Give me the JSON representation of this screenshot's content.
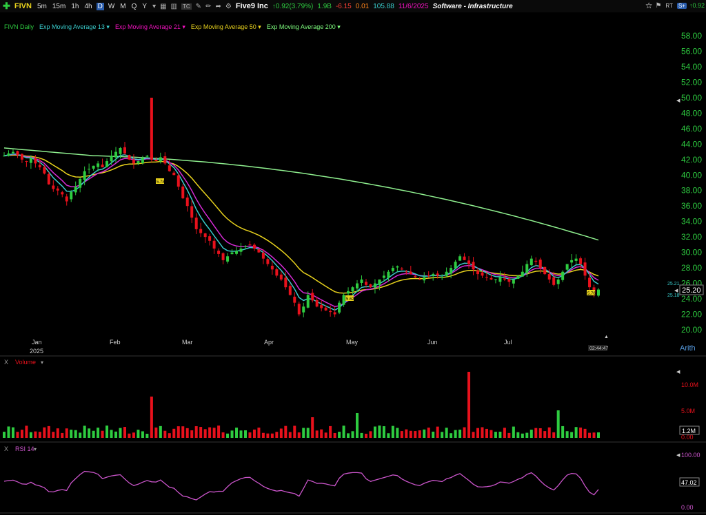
{
  "toolbar": {
    "symbol": "FIVN",
    "timeframes": [
      "5m",
      "15m",
      "1h",
      "4h",
      "D",
      "W",
      "M",
      "Q",
      "Y"
    ],
    "active_tf": "D",
    "company": "Five9 Inc",
    "change": "0.92(3.79%)",
    "vol": "1.9B",
    "val1": "-6.15",
    "val2": "0.01",
    "val3": "105.88",
    "date": "11/6/2025",
    "sector": "Software - Infrastructure",
    "right_change": "0.92"
  },
  "legend": {
    "main": "FIVN Daily",
    "ema13": "Exp Moving Average 13",
    "ema21": "Exp Moving Average 21",
    "ema50": "Exp Moving Average 50",
    "ema200": "Exp Moving Average 200"
  },
  "price_axis": {
    "ticks": [
      "58.00",
      "56.00",
      "54.00",
      "52.00",
      "50.00",
      "48.00",
      "46.00",
      "44.00",
      "42.00",
      "40.00",
      "38.00",
      "36.00",
      "34.00",
      "32.00",
      "30.00",
      "28.00",
      "26.00",
      "24.00",
      "22.00",
      "20.00"
    ],
    "last_price": "25.20",
    "ema_a": "25.21",
    "ema_b": "25.18",
    "scale_mode": "Arith",
    "clock": "02:44:47"
  },
  "x_axis": {
    "months": [
      "Jan",
      "Feb",
      "Mar",
      "Apr",
      "May",
      "Jun",
      "Jul"
    ],
    "year": "2025"
  },
  "annotations": [
    "5.78",
    "5.62",
    "5.76"
  ],
  "volume_panel": {
    "label": "Volume",
    "ticks": [
      "10.0M",
      "5.0M",
      "0.00"
    ],
    "last": "1.2M"
  },
  "rsi_panel": {
    "label": "RSI 14",
    "ticks": [
      "100.00",
      "0.00"
    ],
    "last": "47.02"
  },
  "colors": {
    "up": "#2ecc40",
    "down": "#e8111c",
    "ema13": "#39cccc",
    "ema21": "#d62bd6",
    "ema50": "#e8d21d",
    "ema200": "#8ff08f",
    "rsi": "#cc55cc"
  },
  "chart_data": {
    "type": "candlestick",
    "ylim": [
      19,
      59
    ],
    "candles_close": [
      42.5,
      42.8,
      43.0,
      42.6,
      42.0,
      41.8,
      42.2,
      41.5,
      41.0,
      40.2,
      38.8,
      38.2,
      38.0,
      37.5,
      36.6,
      37.8,
      38.5,
      39.5,
      40.5,
      40.8,
      41.2,
      41.5,
      41.0,
      41.8,
      42.5,
      43.0,
      43.5,
      42.8,
      42.0,
      41.5,
      41.8,
      42.2,
      42.5,
      42.0,
      41.8,
      42.3,
      41.5,
      40.5,
      40.0,
      38.5,
      37.0,
      36.0,
      34.5,
      33.0,
      32.5,
      32.0,
      31.5,
      30.5,
      29.8,
      29.0,
      29.5,
      30.0,
      30.2,
      30.5,
      30.8,
      31.0,
      30.5,
      30.0,
      29.2,
      28.5,
      27.8,
      27.0,
      26.5,
      25.5,
      24.5,
      23.5,
      22.0,
      23.0,
      24.5,
      23.8,
      23.0,
      22.8,
      22.5,
      22.3,
      22.0,
      23.5,
      24.5,
      25.0,
      25.5,
      26.0,
      26.5,
      25.8,
      25.5,
      26.0,
      26.5,
      27.0,
      27.5,
      28.0,
      28.2,
      27.8,
      27.5,
      27.2,
      26.8,
      26.5,
      26.8,
      27.0,
      27.2,
      27.0,
      26.8,
      27.5,
      28.0,
      28.8,
      29.5,
      29.0,
      28.5,
      27.8,
      27.2,
      27.0,
      26.8,
      26.5,
      26.5,
      26.8,
      26.5,
      26.2,
      26.5,
      27.0,
      27.5,
      28.5,
      29.2,
      28.8,
      28.0,
      27.2,
      26.5,
      25.8,
      26.5,
      27.5,
      28.5,
      29.0,
      29.2,
      28.5,
      27.0,
      25.5,
      24.5,
      25.2
    ]
  }
}
